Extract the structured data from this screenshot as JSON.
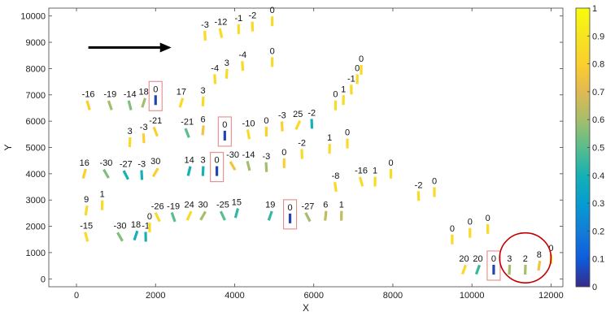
{
  "chart_data": {
    "type": "scatter",
    "title": "",
    "xlabel": "X",
    "ylabel": "Y",
    "xlim": [
      -700,
      12300
    ],
    "ylim": [
      -300,
      10300
    ],
    "xticks": [
      0,
      2000,
      4000,
      6000,
      8000,
      10000,
      12000
    ],
    "yticks": [
      0,
      1000,
      2000,
      3000,
      4000,
      5000,
      6000,
      7000,
      8000,
      9000,
      10000
    ],
    "colorbar": {
      "min": 0,
      "max": 1,
      "ticks": [
        0,
        0.1,
        0.2,
        0.3,
        0.4,
        0.5,
        0.6,
        0.7,
        0.8,
        0.9,
        1
      ],
      "tick_labels": [
        "0",
        "0.1",
        "0.2",
        "0.3",
        "0.4",
        "0.5",
        "0.6",
        "0.7",
        "0.8",
        "0.9",
        "1"
      ],
      "colormap": "parula"
    },
    "grid": false,
    "points": [
      {
        "x": 3250,
        "y": 9250,
        "label": "-3",
        "angle": -3,
        "value": 0.85
      },
      {
        "x": 3650,
        "y": 9350,
        "label": "-12",
        "angle": -12,
        "value": 0.85
      },
      {
        "x": 4100,
        "y": 9500,
        "label": "-1",
        "angle": -1,
        "value": 0.85
      },
      {
        "x": 4450,
        "y": 9600,
        "label": "-2",
        "angle": -2,
        "value": 0.85
      },
      {
        "x": 4950,
        "y": 9800,
        "label": "0",
        "angle": 0,
        "value": 0.85
      },
      {
        "x": 3500,
        "y": 7600,
        "label": "-4",
        "angle": -4,
        "value": 0.85
      },
      {
        "x": 3800,
        "y": 7800,
        "label": "3",
        "angle": 3,
        "value": 0.85
      },
      {
        "x": 4200,
        "y": 8100,
        "label": "-4",
        "angle": -4,
        "value": 0.85
      },
      {
        "x": 4950,
        "y": 8250,
        "label": "0",
        "angle": 0,
        "value": 0.85
      },
      {
        "x": 300,
        "y": 6600,
        "label": "-16",
        "angle": -16,
        "value": 0.8
      },
      {
        "x": 850,
        "y": 6600,
        "label": "-19",
        "angle": -19,
        "value": 0.6
      },
      {
        "x": 1350,
        "y": 6600,
        "label": "-14",
        "angle": -14,
        "value": 0.55
      },
      {
        "x": 1700,
        "y": 6700,
        "label": "18",
        "angle": 18,
        "value": 0.6
      },
      {
        "x": 2000,
        "y": 6800,
        "label": "0",
        "angle": 0,
        "value": 0.05,
        "boxed": true
      },
      {
        "x": 2650,
        "y": 6700,
        "label": "17",
        "angle": 17,
        "value": 0.85
      },
      {
        "x": 3200,
        "y": 6750,
        "label": "3",
        "angle": 3,
        "value": 0.85
      },
      {
        "x": 1350,
        "y": 5200,
        "label": "3",
        "angle": 3,
        "value": 0.85
      },
      {
        "x": 1700,
        "y": 5350,
        "label": "-3",
        "angle": -3,
        "value": 0.8
      },
      {
        "x": 2000,
        "y": 5600,
        "label": "-21",
        "angle": -21,
        "value": 0.8
      },
      {
        "x": 2800,
        "y": 5550,
        "label": "-21",
        "angle": -21,
        "value": 0.5
      },
      {
        "x": 3200,
        "y": 5650,
        "label": "6",
        "angle": 6,
        "value": 0.75
      },
      {
        "x": 3750,
        "y": 5450,
        "label": "0",
        "angle": 0,
        "value": 0.05,
        "boxed": true
      },
      {
        "x": 4350,
        "y": 5500,
        "label": "-10",
        "angle": -10,
        "value": 0.85
      },
      {
        "x": 4800,
        "y": 5600,
        "label": "0",
        "angle": 0,
        "value": 0.8
      },
      {
        "x": 5200,
        "y": 5800,
        "label": "-3",
        "angle": -3,
        "value": 0.8
      },
      {
        "x": 5600,
        "y": 5850,
        "label": "25",
        "angle": 25,
        "value": 0.85
      },
      {
        "x": 5950,
        "y": 5900,
        "label": "-2",
        "angle": -2,
        "value": 0.4
      },
      {
        "x": 6550,
        "y": 6600,
        "label": "0",
        "angle": 0,
        "value": 0.85
      },
      {
        "x": 6750,
        "y": 6800,
        "label": "1",
        "angle": 1,
        "value": 0.85
      },
      {
        "x": 6950,
        "y": 7200,
        "label": "-1",
        "angle": -1,
        "value": 0.85
      },
      {
        "x": 7100,
        "y": 7600,
        "label": "0",
        "angle": 0,
        "value": 0.85
      },
      {
        "x": 7200,
        "y": 7950,
        "label": "0",
        "angle": 0,
        "value": 0.85
      },
      {
        "x": 200,
        "y": 4000,
        "label": "16",
        "angle": 16,
        "value": 0.8
      },
      {
        "x": 750,
        "y": 4000,
        "label": "-30",
        "angle": -30,
        "value": 0.55
      },
      {
        "x": 1250,
        "y": 3950,
        "label": "-27",
        "angle": -27,
        "value": 0.4
      },
      {
        "x": 1650,
        "y": 3950,
        "label": "-3",
        "angle": -3,
        "value": 0.4
      },
      {
        "x": 2000,
        "y": 4050,
        "label": "30",
        "angle": 30,
        "value": 0.8
      },
      {
        "x": 2850,
        "y": 4100,
        "label": "14",
        "angle": 14,
        "value": 0.4
      },
      {
        "x": 3200,
        "y": 4100,
        "label": "3",
        "angle": 3,
        "value": 0.4
      },
      {
        "x": 3550,
        "y": 4100,
        "label": "0",
        "angle": 0,
        "value": 0.05,
        "boxed": true
      },
      {
        "x": 3950,
        "y": 4300,
        "label": "-30",
        "angle": -30,
        "value": 0.75
      },
      {
        "x": 4350,
        "y": 4300,
        "label": "-14",
        "angle": -14,
        "value": 0.6
      },
      {
        "x": 4800,
        "y": 4250,
        "label": "-3",
        "angle": -3,
        "value": 0.6
      },
      {
        "x": 5250,
        "y": 4400,
        "label": "0",
        "angle": 0,
        "value": 0.8
      },
      {
        "x": 5700,
        "y": 4750,
        "label": "-2",
        "angle": -2,
        "value": 0.85
      },
      {
        "x": 6400,
        "y": 4950,
        "label": "1",
        "angle": 1,
        "value": 0.85
      },
      {
        "x": 6850,
        "y": 5150,
        "label": "0",
        "angle": 0,
        "value": 0.85
      },
      {
        "x": 6550,
        "y": 3500,
        "label": "-8",
        "angle": -8,
        "value": 0.85
      },
      {
        "x": 7200,
        "y": 3700,
        "label": "-16",
        "angle": -16,
        "value": 0.85
      },
      {
        "x": 7550,
        "y": 3700,
        "label": "1",
        "angle": 1,
        "value": 0.85
      },
      {
        "x": 7950,
        "y": 4000,
        "label": "0",
        "angle": 0,
        "value": 0.85
      },
      {
        "x": 8650,
        "y": 3150,
        "label": "-2",
        "angle": -2,
        "value": 0.85
      },
      {
        "x": 9050,
        "y": 3300,
        "label": "0",
        "angle": 0,
        "value": 0.85
      },
      {
        "x": 250,
        "y": 2600,
        "label": "9",
        "angle": 9,
        "value": 0.85
      },
      {
        "x": 650,
        "y": 2800,
        "label": "1",
        "angle": 1,
        "value": 0.85
      },
      {
        "x": 250,
        "y": 1600,
        "label": "-15",
        "angle": -15,
        "value": 0.85
      },
      {
        "x": 1100,
        "y": 1600,
        "label": "-30",
        "angle": -30,
        "value": 0.55
      },
      {
        "x": 1500,
        "y": 1650,
        "label": "18",
        "angle": 18,
        "value": 0.4
      },
      {
        "x": 1750,
        "y": 1600,
        "label": "-1",
        "angle": -1,
        "value": 0.4
      },
      {
        "x": 1850,
        "y": 1950,
        "label": "0",
        "angle": 0,
        "value": 0.85
      },
      {
        "x": 2050,
        "y": 2350,
        "label": "-26",
        "angle": -26,
        "value": 0.85
      },
      {
        "x": 2450,
        "y": 2350,
        "label": "-19",
        "angle": -19,
        "value": 0.5
      },
      {
        "x": 2850,
        "y": 2400,
        "label": "24",
        "angle": 24,
        "value": 0.85
      },
      {
        "x": 3200,
        "y": 2400,
        "label": "30",
        "angle": 30,
        "value": 0.6
      },
      {
        "x": 3700,
        "y": 2400,
        "label": "-25",
        "angle": -25,
        "value": 0.5
      },
      {
        "x": 4050,
        "y": 2500,
        "label": "15",
        "angle": 15,
        "value": 0.45
      },
      {
        "x": 4900,
        "y": 2400,
        "label": "19",
        "angle": 19,
        "value": 0.45
      },
      {
        "x": 5400,
        "y": 2300,
        "label": "0",
        "angle": 0,
        "value": 0.05,
        "boxed": true
      },
      {
        "x": 5850,
        "y": 2350,
        "label": "-27",
        "angle": -27,
        "value": 0.6
      },
      {
        "x": 6300,
        "y": 2400,
        "label": "6",
        "angle": 6,
        "value": 0.65
      },
      {
        "x": 6700,
        "y": 2400,
        "label": "1",
        "angle": 1,
        "value": 0.65
      },
      {
        "x": 9500,
        "y": 1500,
        "label": "0",
        "angle": 0,
        "value": 0.85
      },
      {
        "x": 9950,
        "y": 1750,
        "label": "0",
        "angle": 0,
        "value": 0.85
      },
      {
        "x": 10400,
        "y": 1900,
        "label": "0",
        "angle": 0,
        "value": 0.85
      },
      {
        "x": 9800,
        "y": 350,
        "label": "20",
        "angle": 20,
        "value": 0.85
      },
      {
        "x": 10150,
        "y": 350,
        "label": "20",
        "angle": 20,
        "value": 0.45
      },
      {
        "x": 10550,
        "y": 350,
        "label": "0",
        "angle": 0,
        "value": 0.05,
        "boxed": true
      },
      {
        "x": 10950,
        "y": 350,
        "label": "3",
        "angle": 3,
        "value": 0.6
      },
      {
        "x": 11350,
        "y": 350,
        "label": "2",
        "angle": 2,
        "value": 0.6
      },
      {
        "x": 11700,
        "y": 500,
        "label": "8",
        "angle": 8,
        "value": 0.75
      },
      {
        "x": 12000,
        "y": 750,
        "label": "0",
        "angle": 0,
        "value": 0.85
      }
    ],
    "annotations": [
      {
        "type": "arrow",
        "from": [
          300,
          8800
        ],
        "to": [
          2400,
          8800
        ]
      },
      {
        "type": "circle",
        "center": [
          11350,
          800
        ],
        "rx": 650,
        "ry": 950
      }
    ]
  }
}
